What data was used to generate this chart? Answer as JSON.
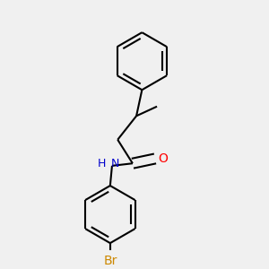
{
  "background_color": "#f0f0f0",
  "bond_color": "#000000",
  "N_color": "#0000cc",
  "O_color": "#ff0000",
  "Br_color": "#cc8800",
  "line_width": 1.5,
  "dbo": 0.018,
  "figsize": [
    3.0,
    3.0
  ],
  "dpi": 100,
  "xlim": [
    0.0,
    1.0
  ],
  "ylim": [
    0.0,
    1.0
  ]
}
